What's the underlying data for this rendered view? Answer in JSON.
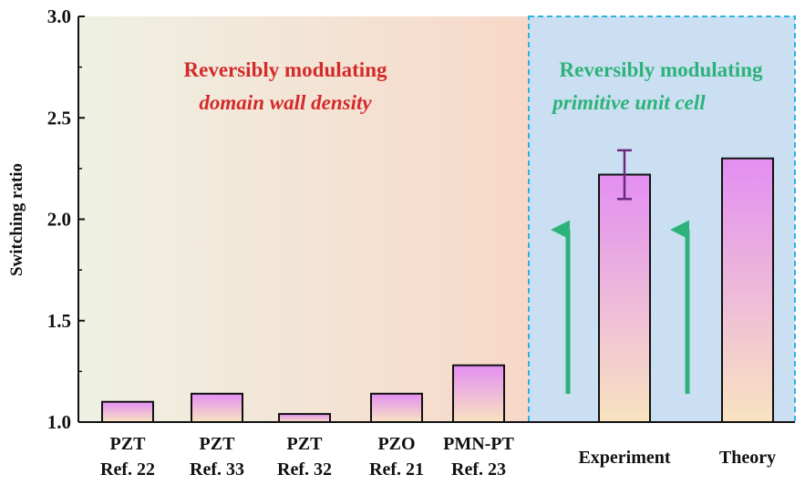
{
  "chart_data": {
    "type": "bar",
    "categories": [
      [
        "PZT",
        "Ref. 22"
      ],
      [
        "PZT",
        "Ref. 33"
      ],
      [
        "PZT",
        "Ref. 32"
      ],
      [
        "PZO",
        "Ref. 21"
      ],
      [
        "PMN-PT",
        "Ref. 23"
      ],
      [
        "Experiment"
      ],
      [
        "Theory"
      ]
    ],
    "values": [
      1.1,
      1.14,
      1.04,
      1.14,
      1.28,
      2.22,
      2.3
    ],
    "error_bars": [
      null,
      null,
      null,
      null,
      null,
      0.12,
      null
    ],
    "ylabel": "Switching ratio",
    "xlabel": "",
    "ylim": [
      1.0,
      3.0
    ],
    "yticks": [
      "1.0",
      "1.5",
      "2.0",
      "2.5",
      "3.0"
    ],
    "annotations": {
      "left_title": "Reversibly modulating",
      "left_subtitle": "domain wall density",
      "right_title": "Reversibly modulating",
      "right_subtitle": "primitive unit cell"
    },
    "colors": {
      "bar_top": "#e38ef2",
      "bar_bottom": "#f8e4c0",
      "left_region_start": "#eef1e3",
      "left_region_end": "#f8d8c8",
      "right_region": "#cbdff2",
      "right_border": "#2bb3e0",
      "arrow": "#2db37a",
      "left_annotation": "#d42a2a",
      "right_annotation": "#2db37a",
      "error_bar": "#6b2a80"
    }
  }
}
